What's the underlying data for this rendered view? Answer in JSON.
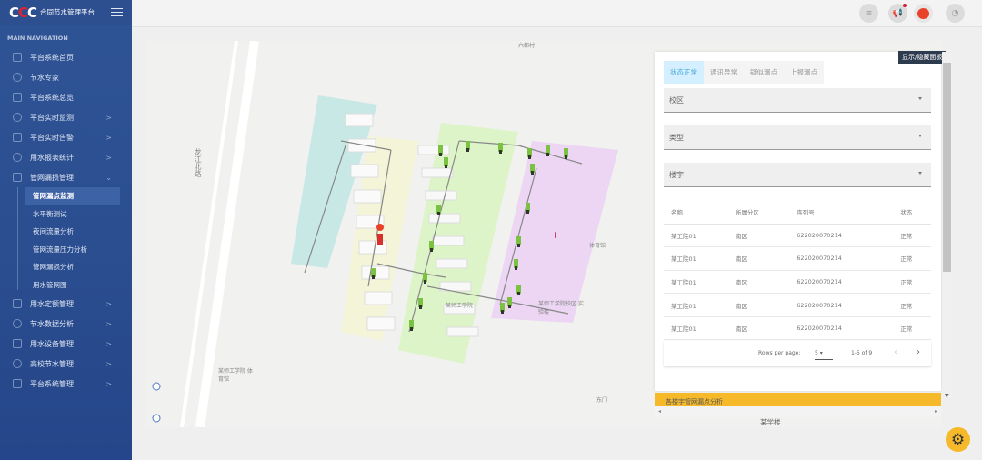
{
  "app": {
    "logo_text": "CCC",
    "title": "合同节水管理平台"
  },
  "sidebar": {
    "header": "MAIN NAVIGATION",
    "items": [
      {
        "label": "平台系统首页",
        "icon": "home-icon"
      },
      {
        "label": "节水专家",
        "icon": "expert-icon"
      },
      {
        "label": "平台系统总览",
        "icon": "overview-icon"
      },
      {
        "label": "平台实时监测",
        "icon": "video-icon",
        "chevron": ">"
      },
      {
        "label": "平台实时告警",
        "icon": "alarm-icon",
        "chevron": ">"
      },
      {
        "label": "用水报表统计",
        "icon": "report-icon",
        "chevron": ">"
      },
      {
        "label": "管网漏损管理",
        "icon": "pipe-icon",
        "chevron": "⌄"
      }
    ],
    "subitems": [
      "管网漏点监测",
      "水平衡测试",
      "夜间流量分析",
      "管网流量压力分析",
      "管网漏损分析",
      "用水管网图"
    ],
    "active_sub": "管网漏点监测",
    "items2": [
      {
        "label": "用水定额管理",
        "icon": "quota-icon",
        "chevron": ">"
      },
      {
        "label": "节水数据分析",
        "icon": "chart-icon",
        "chevron": ">"
      },
      {
        "label": "用水设备管理",
        "icon": "device-icon",
        "chevron": ">"
      },
      {
        "label": "高校节水管理",
        "icon": "campus-icon",
        "chevron": ">"
      },
      {
        "label": "平台系统管理",
        "icon": "gear-icon",
        "chevron": ">"
      }
    ]
  },
  "topbar": {
    "icons": [
      "menu-icon",
      "megaphone-icon",
      "alert-icon",
      "pie-chart-icon"
    ],
    "alert_color": "#e8432a"
  },
  "map": {
    "labels": [
      "龙江北路",
      "六都村",
      "某师工学院",
      "某师工学院校区 实验楼",
      "体育馆",
      "某师工学院 体育馆",
      "东门",
      "某学楼"
    ]
  },
  "panel": {
    "tooltip": "显示/隐藏面板",
    "tabs": [
      "状态正常",
      "通讯异常",
      "疑似漏点",
      "上报漏点"
    ],
    "active_tab": 0,
    "selects": [
      "校区",
      "类型",
      "楼宇"
    ],
    "table": {
      "headers": [
        "名称",
        "所属分区",
        "序列号",
        "状态"
      ],
      "rows": [
        [
          "某工院01",
          "南区",
          "622020070214",
          "正常"
        ],
        [
          "某工院01",
          "南区",
          "622020070214",
          "正常"
        ],
        [
          "某工院01",
          "南区",
          "622020070214",
          "正常"
        ],
        [
          "某工院01",
          "南区",
          "622020070214",
          "正常"
        ],
        [
          "某工院01",
          "南区",
          "622020070214",
          "正常"
        ]
      ]
    },
    "pager": {
      "rows_label": "Rows per page:",
      "rows_value": "5",
      "range": "1-5 of 9",
      "prev": "‹",
      "next": "›"
    },
    "yellow_title": "各楼宇管网漏点分析"
  },
  "colors": {
    "sidebar": "#2f5496",
    "accent": "#f5b92a",
    "tab_active": "#4aa8dc",
    "marker_ok": "#7cc242",
    "marker_alarm": "#d9302c"
  }
}
